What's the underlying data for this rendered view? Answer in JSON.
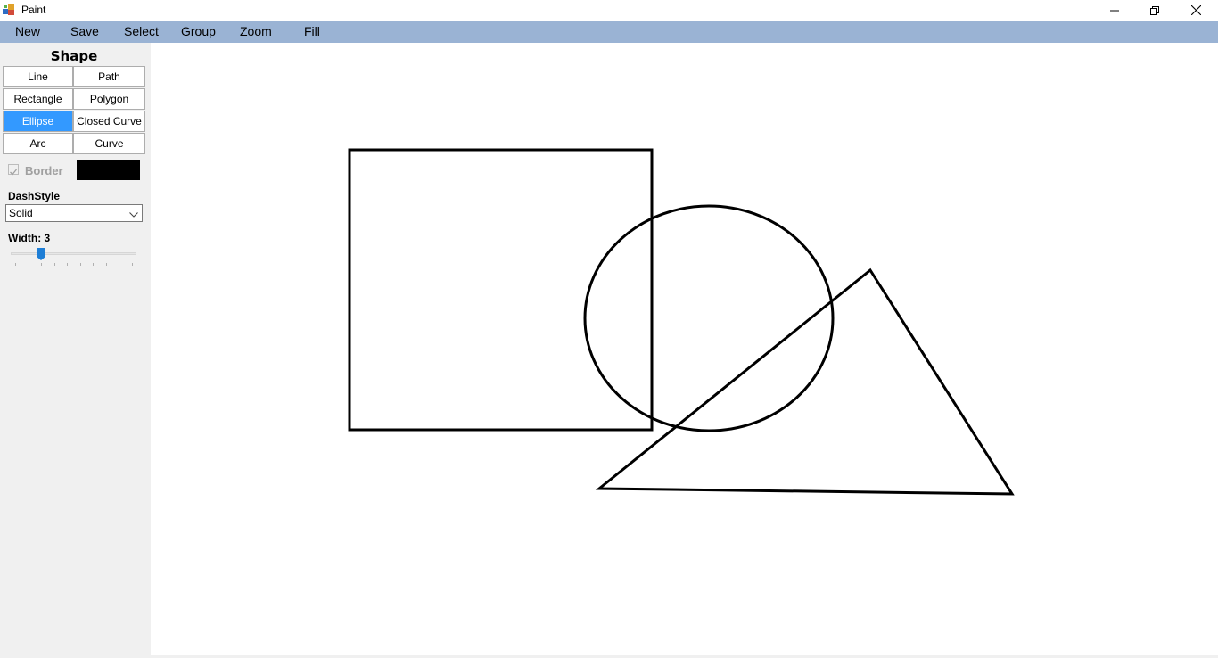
{
  "window": {
    "title": "Paint",
    "app_icon": "paint-app-icon",
    "controls": [
      "minimize-icon",
      "restore-icon",
      "close-icon"
    ]
  },
  "menu": {
    "items": [
      "New",
      "Save",
      "Select",
      "Group",
      "Zoom",
      "Fill"
    ],
    "background_color": "#9ab3d4"
  },
  "panel": {
    "shape_title": "Shape",
    "shape_buttons": [
      "Line",
      "Path",
      "Rectangle",
      "Polygon",
      "Ellipse",
      "Closed Curve",
      "Arc",
      "Curve"
    ],
    "selected_shape": "Ellipse",
    "selected_color": "#3399ff",
    "border": {
      "label": "Border",
      "checked": true,
      "enabled": false,
      "color": "#000000"
    },
    "dash_style": {
      "label": "DashStyle",
      "value": "Solid"
    },
    "width": {
      "label": "Width: 3",
      "value": 3,
      "min": 1,
      "max": 10
    }
  },
  "canvas": {
    "shapes": [
      "Rectangle",
      "Ellipse",
      "Polygon"
    ],
    "stroke_color": "#000000"
  }
}
